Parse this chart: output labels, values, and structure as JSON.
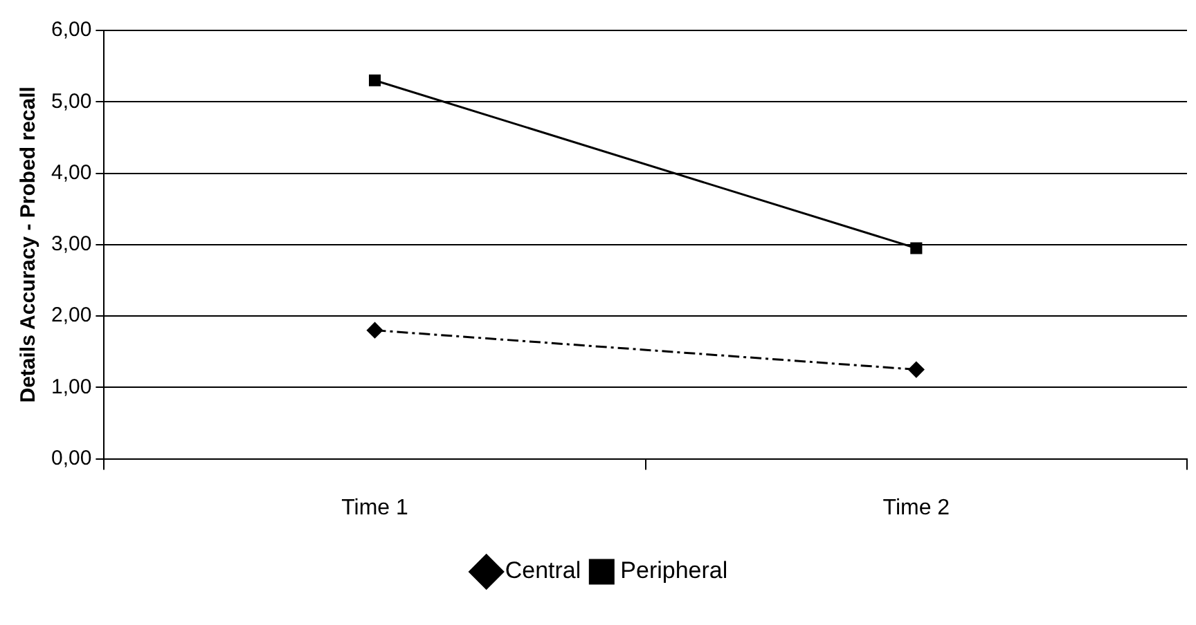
{
  "chart_data": {
    "type": "line",
    "ylabel": "Details Accuracy - Probed recall",
    "categories": [
      "Time 1",
      "Time 2"
    ],
    "series": [
      {
        "name": "Central",
        "color": "#000000",
        "values": [
          1.8,
          1.25
        ],
        "marker": "diamond",
        "line_style": "dashed"
      },
      {
        "name": "Peripheral",
        "color": "#000000",
        "values": [
          5.3,
          2.95
        ],
        "marker": "square",
        "line_style": "solid"
      }
    ],
    "ylim": [
      0,
      6
    ],
    "yticks": [
      {
        "value": 0,
        "label": "0,00"
      },
      {
        "value": 1,
        "label": "1,00"
      },
      {
        "value": 2,
        "label": "2,00"
      },
      {
        "value": 3,
        "label": "3,00"
      },
      {
        "value": 4,
        "label": "4,00"
      },
      {
        "value": 5,
        "label": "5,00"
      },
      {
        "value": 6,
        "label": "6,00"
      }
    ],
    "grid": "y",
    "legend": "bottom"
  }
}
